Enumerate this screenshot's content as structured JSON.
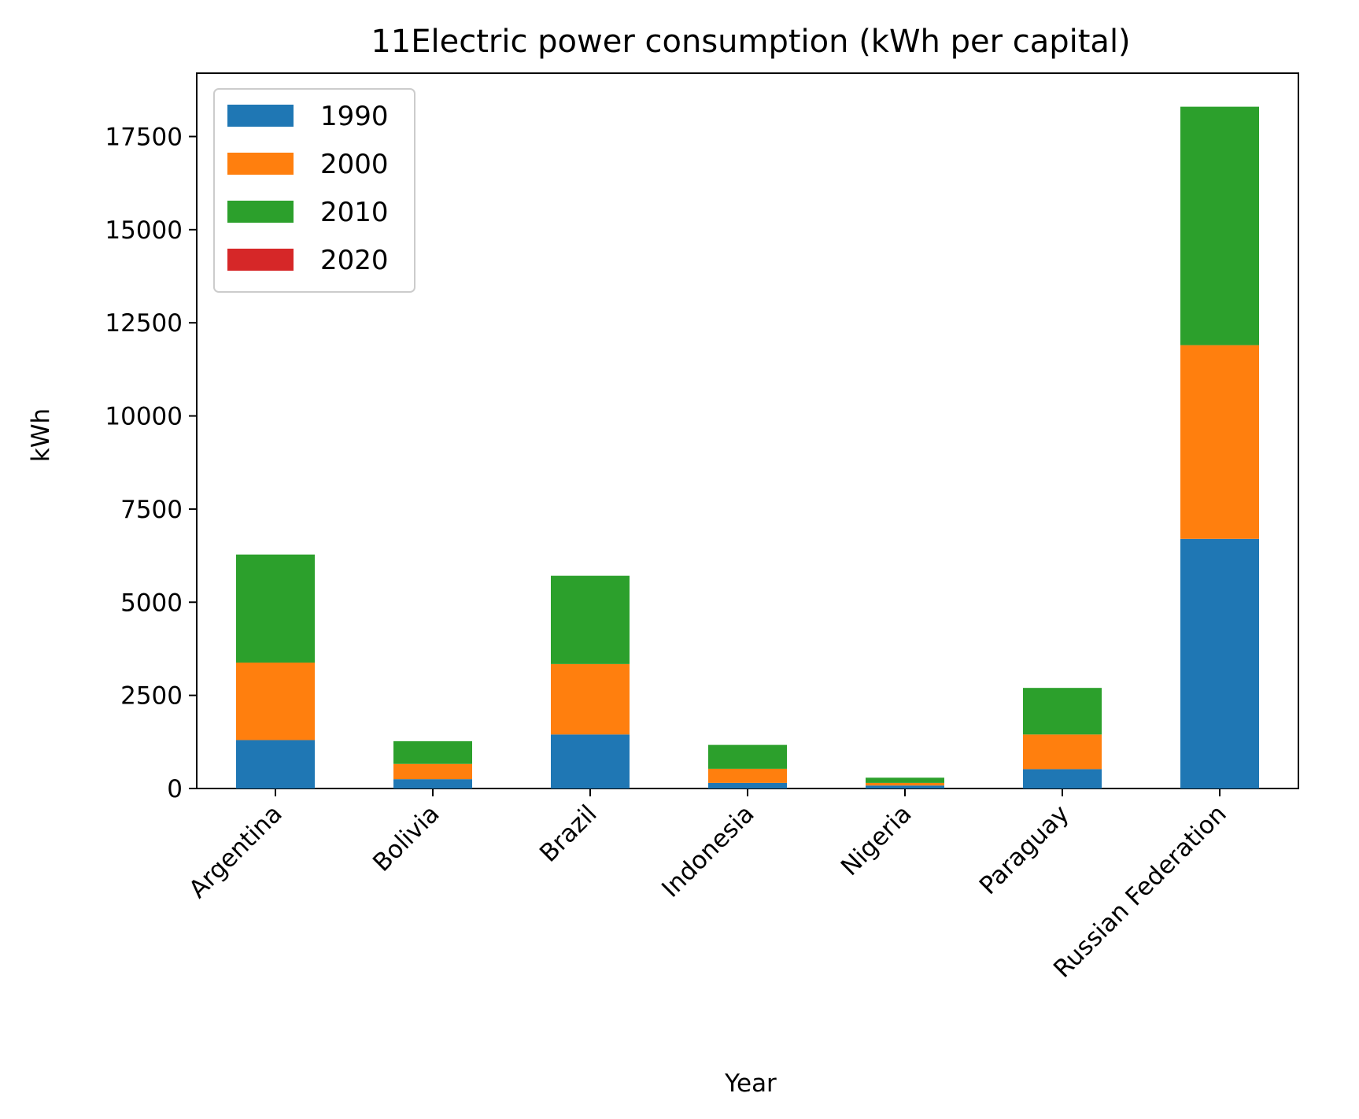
{
  "chart_data": {
    "type": "bar",
    "stacked": true,
    "title": "11Electric power consumption (kWh per capital)",
    "xlabel": "Year",
    "ylabel": "kWh",
    "ylim": [
      0,
      19200
    ],
    "yticks": [
      0,
      2500,
      5000,
      7500,
      10000,
      12500,
      15000,
      17500
    ],
    "categories": [
      "Argentina",
      "Bolivia",
      "Brazil",
      "Indonesia",
      "Nigeria",
      "Paraguay",
      "Russian Federation"
    ],
    "series": [
      {
        "name": "1990",
        "color": "#1f77b4",
        "values": [
          1300,
          250,
          1450,
          150,
          80,
          520,
          6700
        ]
      },
      {
        "name": "2000",
        "color": "#ff7f0e",
        "values": [
          2080,
          410,
          1890,
          380,
          70,
          930,
          5200
        ]
      },
      {
        "name": "2010",
        "color": "#2ca02c",
        "values": [
          2900,
          610,
          2370,
          640,
          140,
          1250,
          6400
        ]
      },
      {
        "name": "2020",
        "color": "#d62728",
        "values": [
          0,
          0,
          0,
          0,
          0,
          0,
          0
        ]
      }
    ],
    "legend_position": "top-left",
    "grid": false
  }
}
